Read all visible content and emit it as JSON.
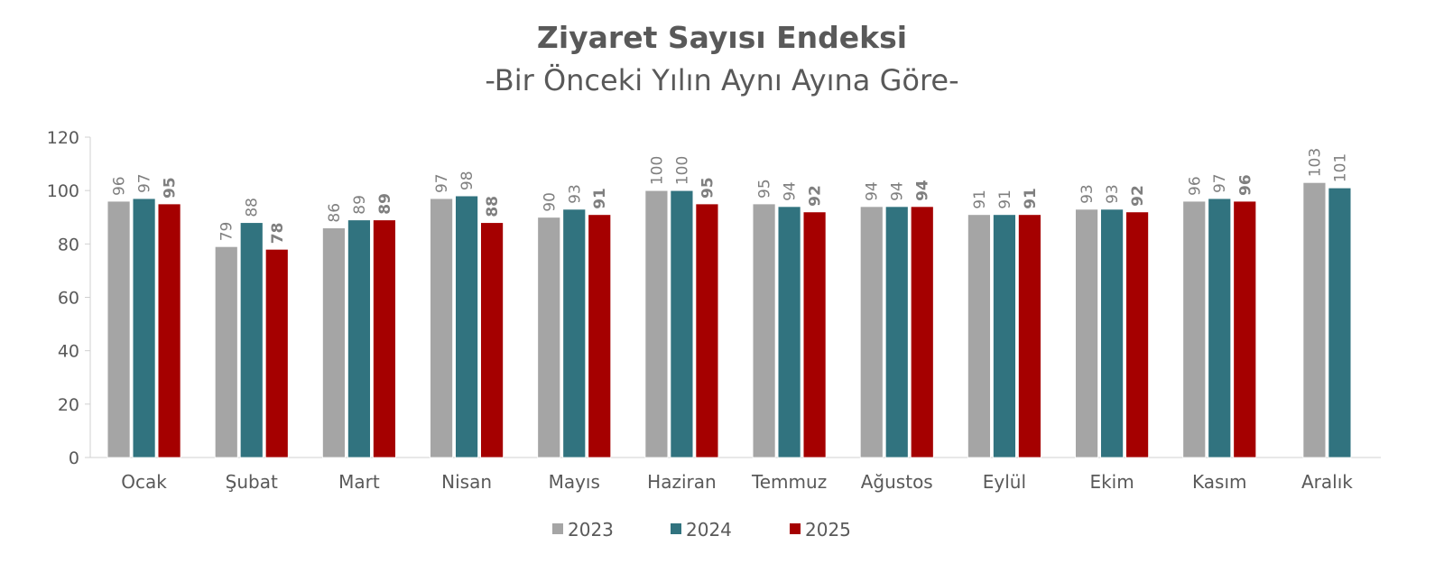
{
  "chart_data": {
    "type": "bar",
    "title": "Ziyaret Sayısı Endeksi",
    "subtitle": "-Bir Önceki Yılın Aynı Ayına Göre-",
    "categories": [
      "Ocak",
      "Şubat",
      "Mart",
      "Nisan",
      "Mayıs",
      "Haziran",
      "Temmuz",
      "Ağustos",
      "Eylül",
      "Ekim",
      "Kasım",
      "Aralık"
    ],
    "series": [
      {
        "name": "2023",
        "color": "#a5a5a5",
        "values": [
          96,
          79,
          86,
          97,
          90,
          100,
          95,
          94,
          91,
          93,
          96,
          103
        ],
        "bold_labels": false
      },
      {
        "name": "2024",
        "color": "#31737f",
        "values": [
          97,
          88,
          89,
          98,
          93,
          100,
          94,
          94,
          91,
          93,
          97,
          101
        ],
        "bold_labels": false
      },
      {
        "name": "2025",
        "color": "#a50000",
        "values": [
          95,
          78,
          89,
          88,
          91,
          95,
          92,
          94,
          91,
          92,
          96,
          null
        ],
        "bold_labels": true
      }
    ],
    "ylim": [
      0,
      120
    ],
    "yticks": [
      0,
      20,
      40,
      60,
      80,
      100,
      120
    ],
    "grid": false,
    "legend_position": "bottom"
  }
}
